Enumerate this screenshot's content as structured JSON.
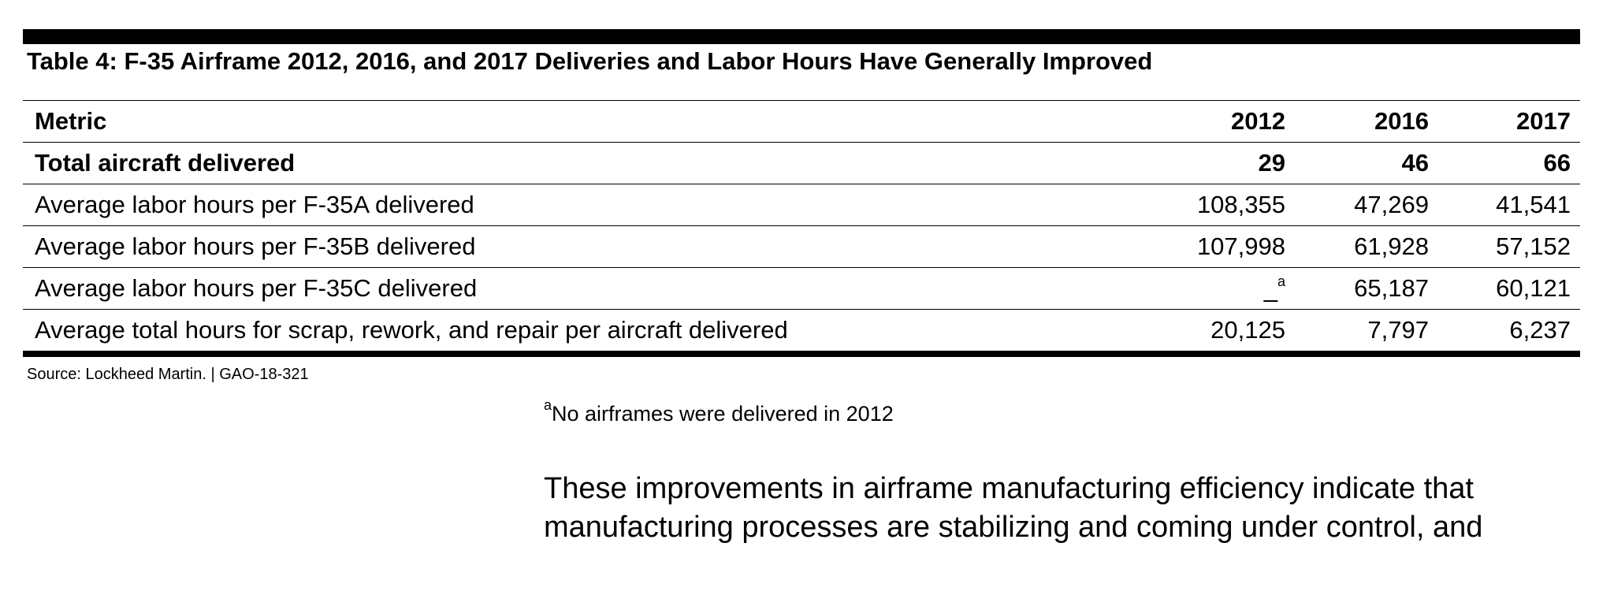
{
  "title": "Table 4: F-35 Airframe 2012, 2016, and 2017 Deliveries and Labor Hours Have Generally Improved",
  "table": {
    "header": [
      "Metric",
      "2012",
      "2016",
      "2017"
    ],
    "rows": [
      [
        "Total aircraft delivered",
        "29",
        "46",
        "66"
      ],
      [
        "Average labor hours per F-35A delivered",
        "108,355",
        "47,269",
        "41,541"
      ],
      [
        "Average labor hours per F-35B delivered",
        "107,998",
        "61,928",
        "57,152"
      ],
      [
        "Average labor hours per F-35C delivered",
        {
          "text": "_",
          "note": "a"
        },
        "65,187",
        "60,121"
      ],
      [
        "Average total hours for scrap, rework, and repair per aircraft delivered",
        "20,125",
        "7,797",
        "6,237"
      ]
    ]
  },
  "source": "Source: Lockheed Martin. | GAO-18-321",
  "footnote": {
    "marker": "a",
    "text": "No airframes were delivered in 2012"
  },
  "paragraph": [
    "These improvements in airframe manufacturing efficiency indicate that",
    "manufacturing processes are stabilizing and coming under control, and"
  ]
}
